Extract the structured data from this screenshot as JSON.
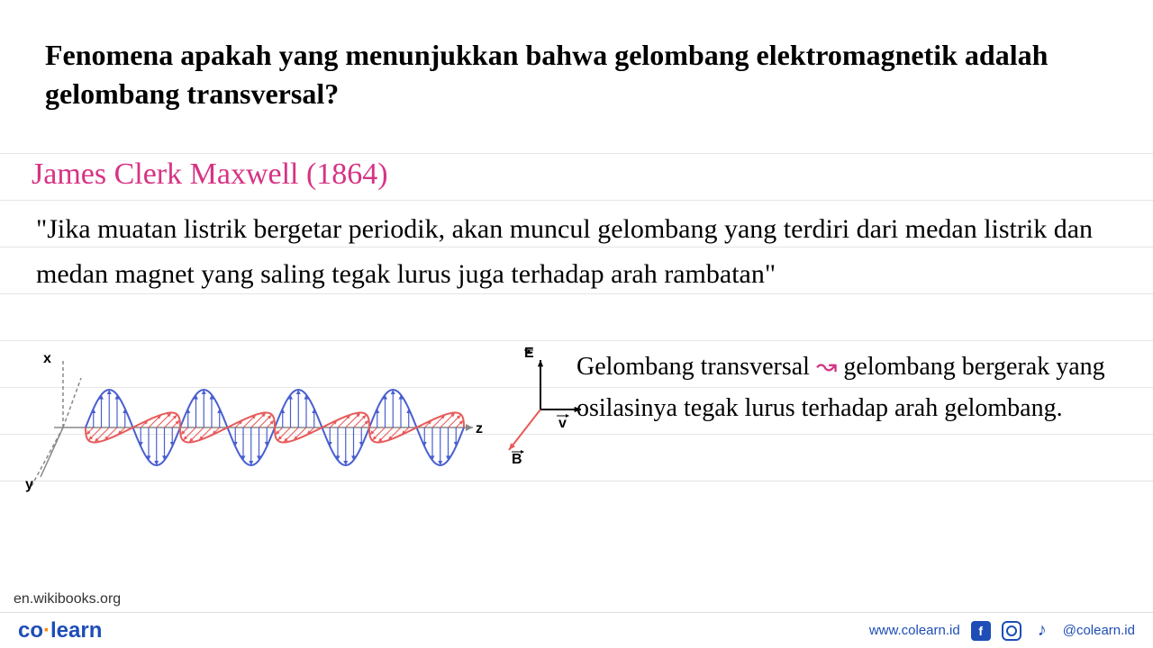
{
  "question": "Fenomena apakah yang menunjukkan bahwa gelombang elektromagnetik adalah gelombang transversal?",
  "heading": "James Clerk Maxwell (1864)",
  "heading_color": "#d63384",
  "quote": "\"Jika muatan listrik bergetar periodik, akan muncul gelombang yang terdiri dari medan listrik dan medan magnet yang saling tegak lurus juga terhadap arah rambatan\"",
  "definition_pre": "Gelombang transversal",
  "definition_arrow_word": "↝",
  "definition_post": "gelombang bergerak yang osilasinya tegak lurus terhadap arah gelombang.",
  "ruled_line_color": "#e5e5e5",
  "ruled_line_spacing": 52,
  "ruled_line_count": 8,
  "wave_diagram": {
    "type": "em-wave",
    "axes": {
      "x_label": "x",
      "y_label": "y",
      "z_label": "z"
    },
    "e_field": {
      "color": "#4a5fd0",
      "amplitude": 42,
      "cycles": 4,
      "label": "E",
      "arrow": "↑"
    },
    "b_field": {
      "color": "#e85a5a",
      "amplitude": 30,
      "cycles": 4,
      "label": "B",
      "arrow": "↙"
    },
    "propagation": {
      "label": "v",
      "arrow": "→"
    },
    "centerline_color": "#888",
    "axis_3d_color": "#888"
  },
  "vector_axes": {
    "E": {
      "label": "E̅",
      "color": "#000"
    },
    "v": {
      "label": "v̅",
      "color": "#000"
    },
    "B": {
      "label": "B̅",
      "color": "#e85a5a"
    }
  },
  "source_text": "en.wikibooks.org",
  "footer": {
    "logo_pre": "co",
    "logo_dot": "·",
    "logo_post": "learn",
    "website": "www.colearn.id",
    "handle": "@colearn.id",
    "brand_color": "#1e4db7",
    "accent_color": "#ff8800"
  }
}
